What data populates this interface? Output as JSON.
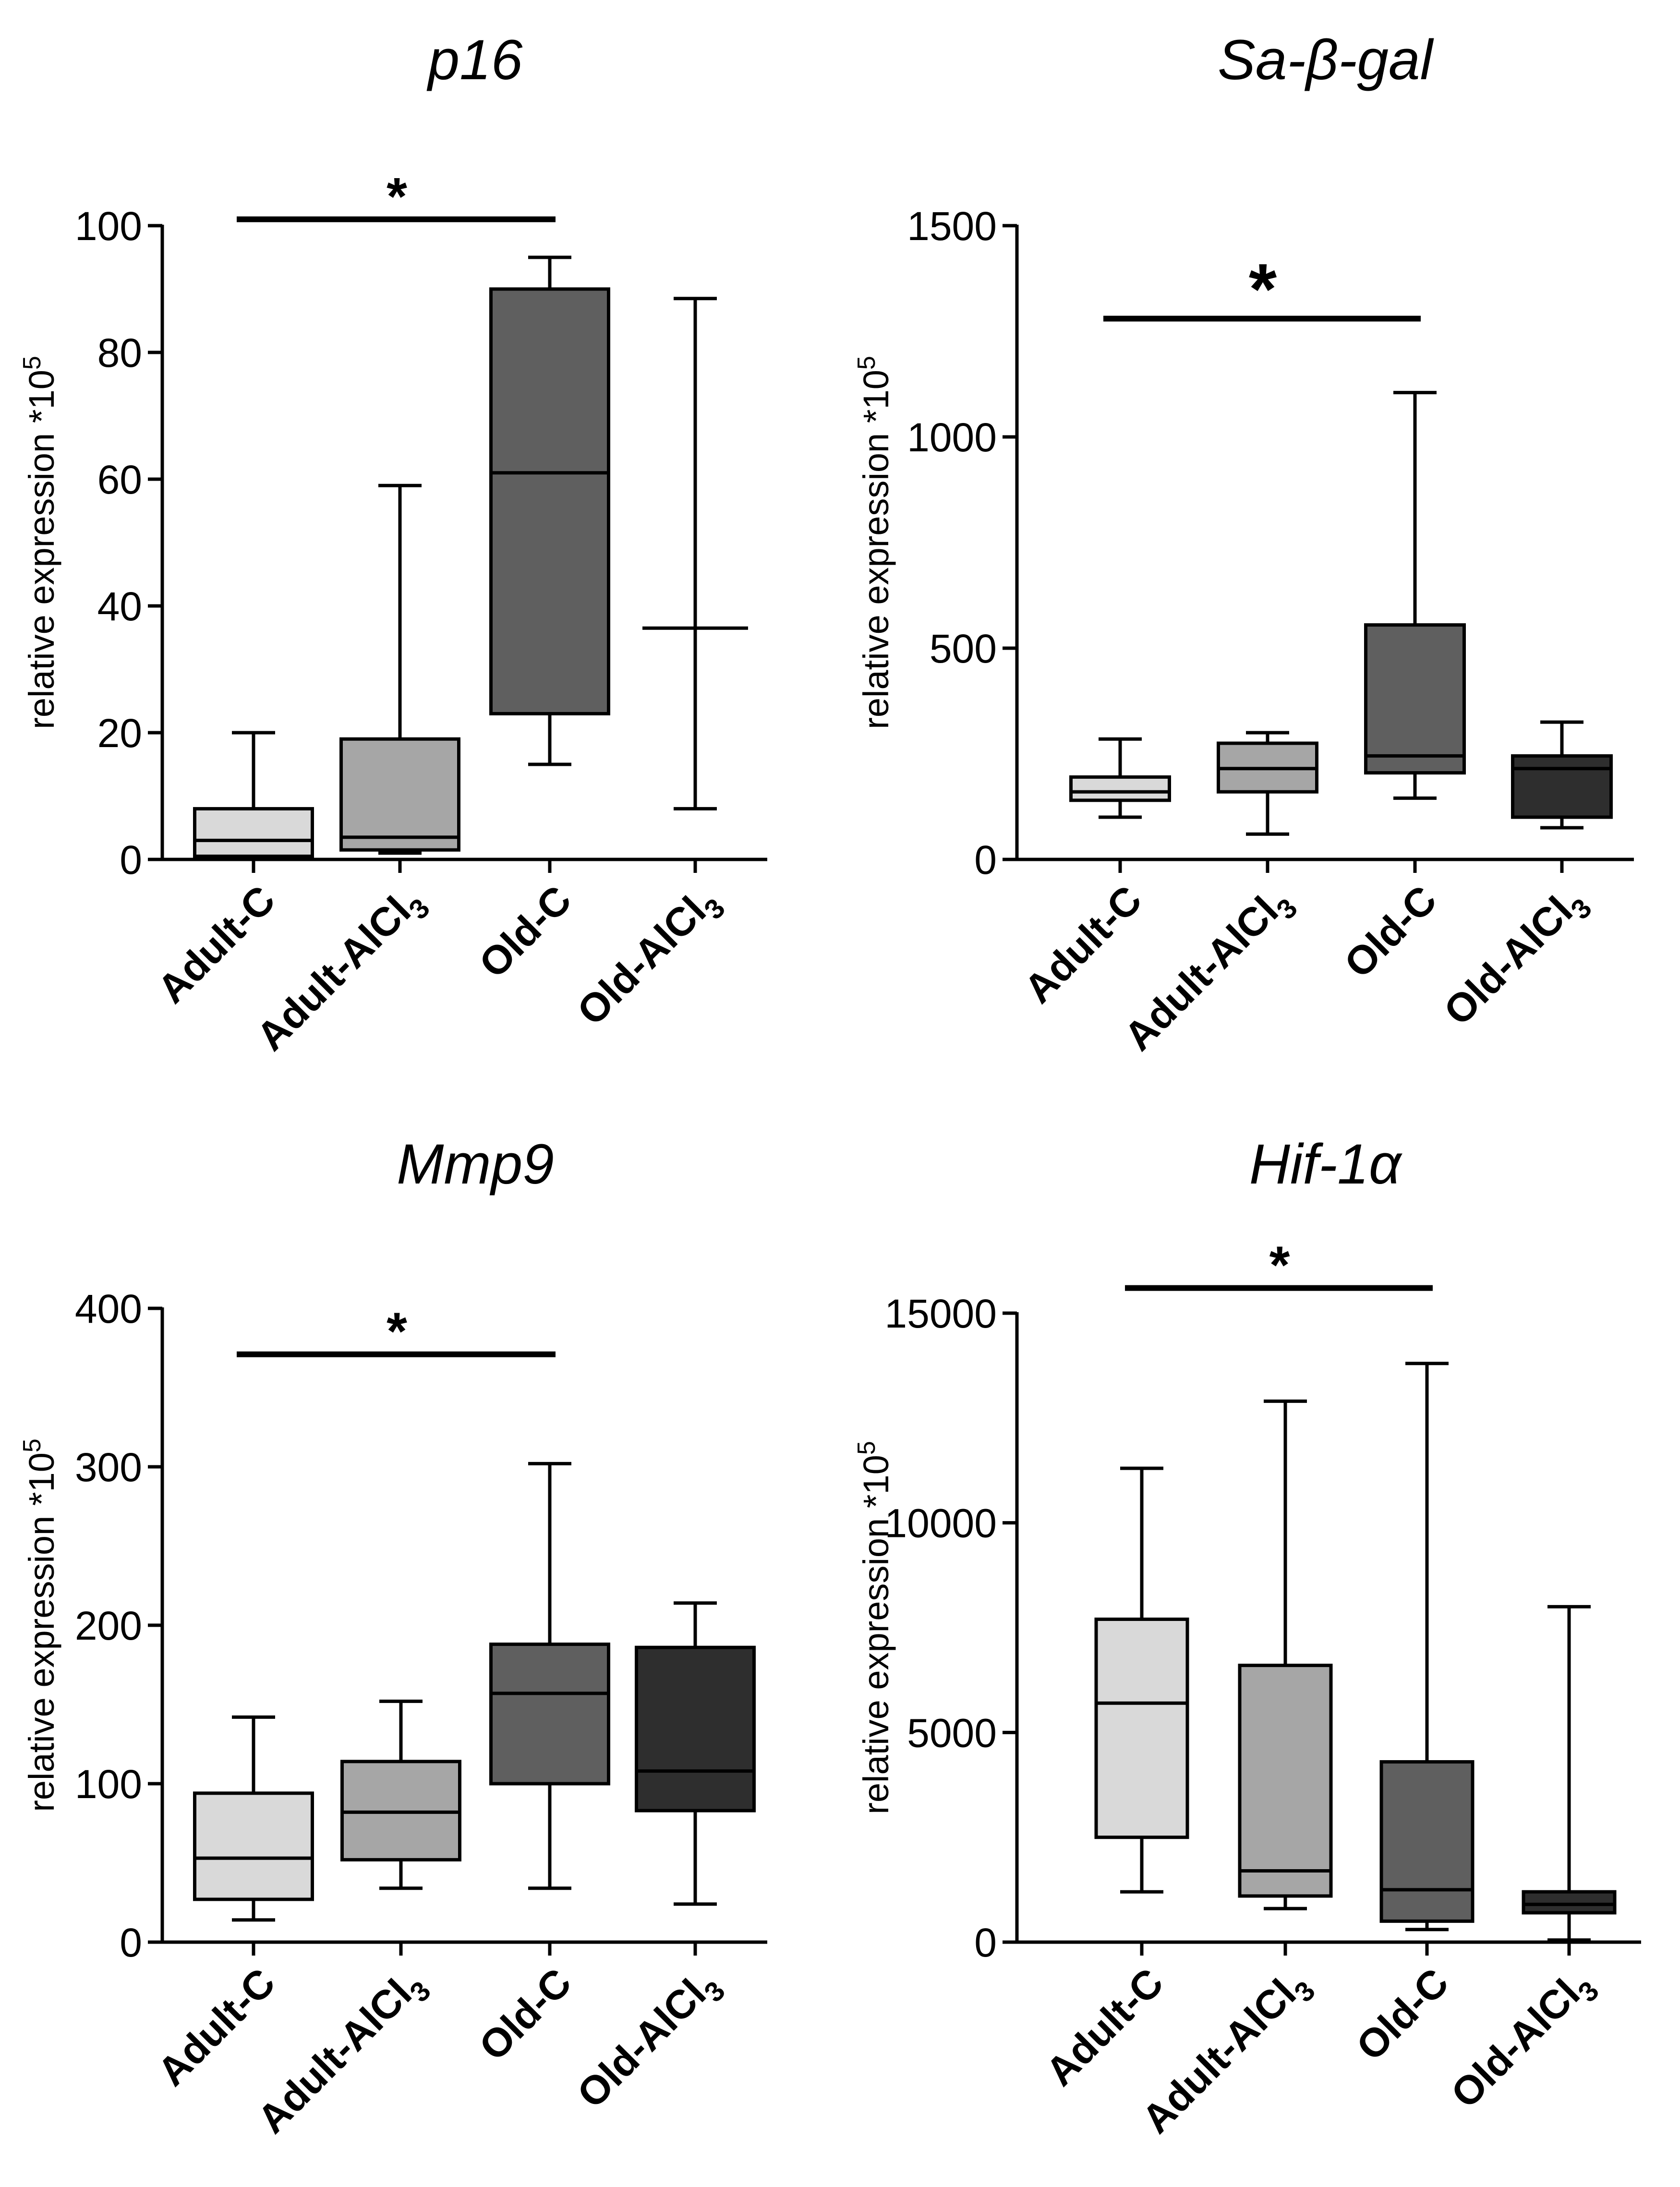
{
  "chart_data": [
    {
      "type": "box",
      "title": "p16",
      "ylabel": "relative expression *10",
      "ylabel_exp": "5",
      "ylim": [
        0,
        100
      ],
      "yticks": [
        "0",
        "20",
        "40",
        "60",
        "80",
        "100"
      ],
      "categories": [
        "Adult-C",
        "Adult-AlCl",
        "Old-C",
        "Old-AlCl"
      ],
      "category_subscripts": [
        "",
        "3",
        "",
        "3"
      ],
      "colors": [
        "#d9d9d9",
        "#a6a6a6",
        "#5f5f5f",
        "#2e2e2e"
      ],
      "boxes": [
        {
          "min": 0.5,
          "q1": 0.5,
          "median": 3,
          "q3": 8,
          "max": 20
        },
        {
          "min": 1,
          "q1": 1.5,
          "median": 3.5,
          "q3": 19,
          "max": 59
        },
        {
          "min": 15,
          "q1": 23,
          "median": 61,
          "q3": 90,
          "max": 95
        },
        {
          "min": 8,
          "q1": 36.5,
          "median": 36.5,
          "q3": 36.5,
          "max": 88.5
        }
      ],
      "significance": {
        "from": 0,
        "to": 2,
        "label": "*",
        "y": 101
      }
    },
    {
      "type": "box",
      "title": "Sa-β-gal",
      "ylabel": "relative expression *10",
      "ylabel_exp": "5",
      "ylim": [
        0,
        1500
      ],
      "yticks": [
        "0",
        "500",
        "1000",
        "1500"
      ],
      "categories": [
        "Adult-C",
        "Adult-AlCl",
        "Old-C",
        "Old-AlCl"
      ],
      "category_subscripts": [
        "",
        "3",
        "",
        "3"
      ],
      "colors": [
        "#d9d9d9",
        "#a6a6a6",
        "#5f5f5f",
        "#2e2e2e"
      ],
      "boxes": [
        {
          "min": 100,
          "q1": 140,
          "median": 160,
          "q3": 195,
          "max": 285
        },
        {
          "min": 60,
          "q1": 160,
          "median": 215,
          "q3": 275,
          "max": 300
        },
        {
          "min": 145,
          "q1": 205,
          "median": 245,
          "q3": 555,
          "max": 1105
        },
        {
          "min": 75,
          "q1": 100,
          "median": 215,
          "q3": 245,
          "max": 325
        }
      ],
      "significance": {
        "from": 0,
        "to": 2,
        "label": "*",
        "y": 1280
      }
    },
    {
      "type": "box",
      "title": "Mmp9",
      "ylabel": "relative expression *10",
      "ylabel_exp": "5",
      "ylim": [
        0,
        400
      ],
      "yticks": [
        "0",
        "100",
        "200",
        "300",
        "400"
      ],
      "categories": [
        "Adult-C",
        "Adult-AlCl",
        "Old-C",
        "Old-AlCl"
      ],
      "category_subscripts": [
        "",
        "3",
        "",
        "3"
      ],
      "colors": [
        "#d9d9d9",
        "#a6a6a6",
        "#5f5f5f",
        "#2e2e2e"
      ],
      "boxes": [
        {
          "min": 14,
          "q1": 27,
          "median": 53,
          "q3": 94,
          "max": 142
        },
        {
          "min": 34,
          "q1": 52,
          "median": 82,
          "q3": 114,
          "max": 152
        },
        {
          "min": 34,
          "q1": 100,
          "median": 157,
          "q3": 188,
          "max": 302
        },
        {
          "min": 24,
          "q1": 83,
          "median": 108,
          "q3": 186,
          "max": 214
        }
      ],
      "significance": {
        "from": 0,
        "to": 2,
        "label": "*",
        "y": 371
      }
    },
    {
      "type": "box",
      "title": "Hif-1α",
      "ylabel": "relative expression *10",
      "ylabel_exp": "5",
      "ylim": [
        0,
        15000
      ],
      "yticks": [
        "0",
        "5000",
        "10000",
        "15000"
      ],
      "categories": [
        "Adult-C",
        "Adult-AlCl",
        "Old-C",
        "Old-AlCl"
      ],
      "category_subscripts": [
        "",
        "3",
        "",
        "3"
      ],
      "colors": [
        "#d9d9d9",
        "#a6a6a6",
        "#5f5f5f",
        "#2e2e2e"
      ],
      "boxes": [
        {
          "min": 1200,
          "q1": 2500,
          "median": 5700,
          "q3": 7700,
          "max": 11300
        },
        {
          "min": 800,
          "q1": 1100,
          "median": 1700,
          "q3": 6600,
          "max": 12900
        },
        {
          "min": 300,
          "q1": 500,
          "median": 1250,
          "q3": 4300,
          "max": 13800
        },
        {
          "min": 50,
          "q1": 700,
          "median": 900,
          "q3": 1200,
          "max": 8000
        }
      ],
      "significance": {
        "from": 0,
        "to": 2,
        "label": "*",
        "y": 15600
      }
    }
  ]
}
